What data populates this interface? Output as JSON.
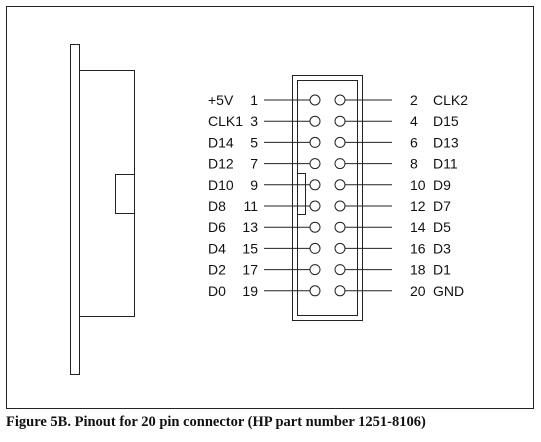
{
  "figure": {
    "caption": "Figure 5B. Pinout for 20 pin connector (HP part number 1251-8106)"
  },
  "connector": {
    "left_pins": [
      {
        "signal": "+5V",
        "pin": "1"
      },
      {
        "signal": "CLK1",
        "pin": "3"
      },
      {
        "signal": "D14",
        "pin": "5"
      },
      {
        "signal": "D12",
        "pin": "7"
      },
      {
        "signal": "D10",
        "pin": "9"
      },
      {
        "signal": "D8",
        "pin": "11"
      },
      {
        "signal": "D6",
        "pin": "13"
      },
      {
        "signal": "D4",
        "pin": "15"
      },
      {
        "signal": "D2",
        "pin": "17"
      },
      {
        "signal": "D0",
        "pin": "19"
      }
    ],
    "right_pins": [
      {
        "signal": "CLK2",
        "pin": "2"
      },
      {
        "signal": "D15",
        "pin": "4"
      },
      {
        "signal": "D13",
        "pin": "6"
      },
      {
        "signal": "D11",
        "pin": "8"
      },
      {
        "signal": "D9",
        "pin": "10"
      },
      {
        "signal": "D7",
        "pin": "12"
      },
      {
        "signal": "D5",
        "pin": "14"
      },
      {
        "signal": "D3",
        "pin": "16"
      },
      {
        "signal": "D1",
        "pin": "18"
      },
      {
        "signal": "GND",
        "pin": "20"
      }
    ]
  }
}
